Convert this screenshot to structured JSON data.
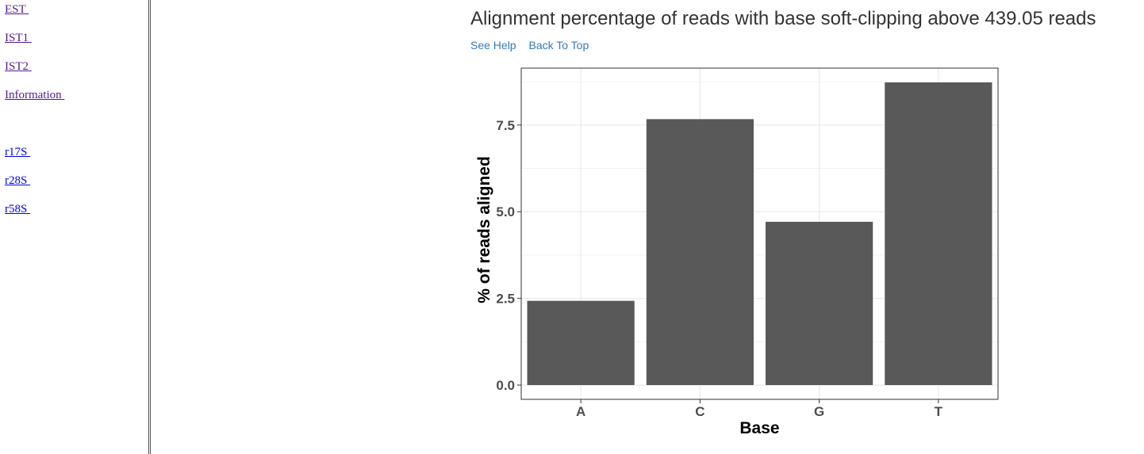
{
  "sidebar": {
    "items": [
      {
        "label": "EST ",
        "visited": true
      },
      {
        "label": "IST1 ",
        "visited": true
      },
      {
        "label": "IST2 ",
        "visited": true
      },
      {
        "label": "Information ",
        "visited": true
      },
      {
        "label": "r17S ",
        "visited": false
      },
      {
        "label": "r28S ",
        "visited": false
      },
      {
        "label": "r58S ",
        "visited": false
      }
    ]
  },
  "section": {
    "title": "Alignment percentage of reads with base soft-clipping above 439.05 reads",
    "help_link": "See Help",
    "top_link": "Back To Top"
  },
  "colors": {
    "bar": "#595959",
    "grid": "#ebebeb",
    "link": "#337ab7",
    "visited_link": "#551a8b",
    "unvisited_link": "#0000ee"
  },
  "chart_data": {
    "type": "bar",
    "categories": [
      "A",
      "C",
      "G",
      "T"
    ],
    "values": [
      2.43,
      7.67,
      4.71,
      8.73
    ],
    "xlabel": "Base",
    "ylabel": "% of reads aligned",
    "yticks": [
      "0.0",
      "2.5",
      "5.0",
      "7.5"
    ],
    "ylim": [
      0,
      8.73
    ],
    "grid": true,
    "legend": "none"
  }
}
